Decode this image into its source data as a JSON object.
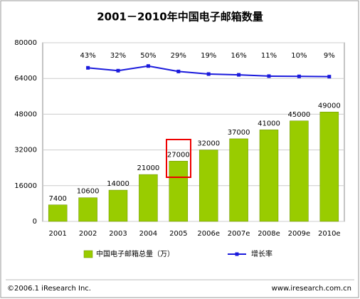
{
  "chart_data": {
    "type": "bar",
    "title": "2001－2010年中国电子邮箱数量",
    "categories": [
      "2001",
      "2002",
      "2003",
      "2004",
      "2005",
      "2006e",
      "2007e",
      "2008e",
      "2009e",
      "2010e"
    ],
    "series": [
      {
        "name": "中国电子邮箱总量（万）",
        "type": "bar",
        "color": "#99cc00",
        "values": [
          7400,
          10600,
          14000,
          21000,
          27000,
          32000,
          37000,
          41000,
          45000,
          49000
        ]
      },
      {
        "name": "增长率",
        "type": "line",
        "axis": "y2",
        "color": "#1a1adc",
        "values": [
          null,
          43,
          32,
          50,
          29,
          19,
          16,
          11,
          10,
          9
        ],
        "value_labels": [
          null,
          "43%",
          "32%",
          "50%",
          "29%",
          "19%",
          "16%",
          "11%",
          "10%",
          "9%"
        ]
      }
    ],
    "ylim": [
      0,
      80000
    ],
    "yticks": [
      0,
      16000,
      32000,
      48000,
      64000,
      80000
    ],
    "y2lim": [
      -550,
      140
    ],
    "grid": true,
    "legend": "bottom",
    "footer_left": "©2006.1 iResearch Inc.",
    "footer_right": "www.iresearch.com.cn"
  }
}
